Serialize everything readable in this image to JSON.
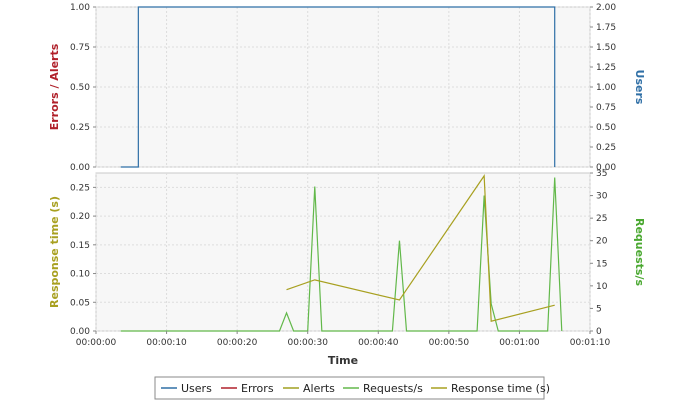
{
  "chart_data": [
    {
      "type": "line",
      "ylabel_left": "Errors / Alerts",
      "ylabel_right": "Users",
      "ylim_left": [
        0,
        1
      ],
      "ylim_right": [
        0,
        2
      ],
      "left_ticks": [
        "0.00",
        "0.25",
        "0.50",
        "0.75",
        "1.00"
      ],
      "right_ticks": [
        "0.00",
        "0.25",
        "0.50",
        "0.75",
        "1.00",
        "1.25",
        "1.50",
        "1.75",
        "2.00"
      ],
      "xlim_seconds": [
        0,
        70
      ],
      "grid": true,
      "series": [
        {
          "name": "Users",
          "axis": "right",
          "color": "#2f6fa6",
          "points": [
            [
              "00:00:03.5",
              0
            ],
            [
              "00:00:06",
              0
            ],
            [
              "00:00:06",
              2
            ],
            [
              "00:01:05",
              2
            ],
            [
              "00:01:05",
              0
            ]
          ]
        },
        {
          "name": "Errors",
          "axis": "left",
          "color": "#b0202a",
          "points": []
        },
        {
          "name": "Alerts",
          "axis": "left",
          "color": "#a0a020",
          "points": []
        }
      ]
    },
    {
      "type": "line",
      "xlabel": "Time",
      "ylabel_left": "Response time (s)",
      "ylabel_right": "Requests/s",
      "ylim_left": [
        0,
        0.275
      ],
      "ylim_right": [
        0,
        35
      ],
      "left_ticks": [
        "0.00",
        "0.05",
        "0.10",
        "0.15",
        "0.20",
        "0.25"
      ],
      "right_ticks": [
        "0",
        "5",
        "10",
        "15",
        "20",
        "25",
        "30",
        "35"
      ],
      "x_ticks": [
        "00:00:00",
        "00:00:10",
        "00:00:20",
        "00:00:30",
        "00:00:40",
        "00:00:50",
        "00:01:00",
        "00:01:10"
      ],
      "xlim_seconds": [
        0,
        70
      ],
      "grid": true,
      "series": [
        {
          "name": "Requests/s",
          "axis": "right",
          "color": "#62b84a",
          "points": [
            [
              "00:00:03.5",
              0
            ],
            [
              "00:00:26",
              0
            ],
            [
              "00:00:27",
              4
            ],
            [
              "00:00:28",
              0
            ],
            [
              "00:00:30",
              0
            ],
            [
              "00:00:31",
              32
            ],
            [
              "00:00:32",
              0
            ],
            [
              "00:00:42",
              0
            ],
            [
              "00:00:43",
              20
            ],
            [
              "00:00:44",
              0
            ],
            [
              "00:00:54",
              0
            ],
            [
              "00:00:55",
              30
            ],
            [
              "00:00:56",
              6
            ],
            [
              "00:00:57",
              0
            ],
            [
              "00:01:04",
              0
            ],
            [
              "00:01:05",
              34
            ],
            [
              "00:01:06",
              0
            ]
          ]
        },
        {
          "name": "Response time (s)",
          "axis": "left",
          "color": "#a8a020",
          "points": [
            [
              "00:00:27",
              0.072
            ],
            [
              "00:00:31",
              0.089
            ],
            [
              "00:00:43",
              0.054
            ],
            [
              "00:00:55",
              0.27
            ],
            [
              "00:00:56",
              0.017
            ],
            [
              "00:01:05",
              0.045
            ]
          ]
        }
      ]
    }
  ],
  "legend": {
    "position": "bottom",
    "items": [
      {
        "label": "Users",
        "color": "#2f6fa6"
      },
      {
        "label": "Errors",
        "color": "#b0202a"
      },
      {
        "label": "Alerts",
        "color": "#a0a020"
      },
      {
        "label": "Requests/s",
        "color": "#62b84a"
      },
      {
        "label": "Response time (s)",
        "color": "#a8a020"
      }
    ]
  },
  "colors": {
    "users_axis": "#2f6fa6",
    "errors_axis": "#b0202a",
    "response_axis": "#a8a020",
    "requests_axis": "#4aa830"
  }
}
